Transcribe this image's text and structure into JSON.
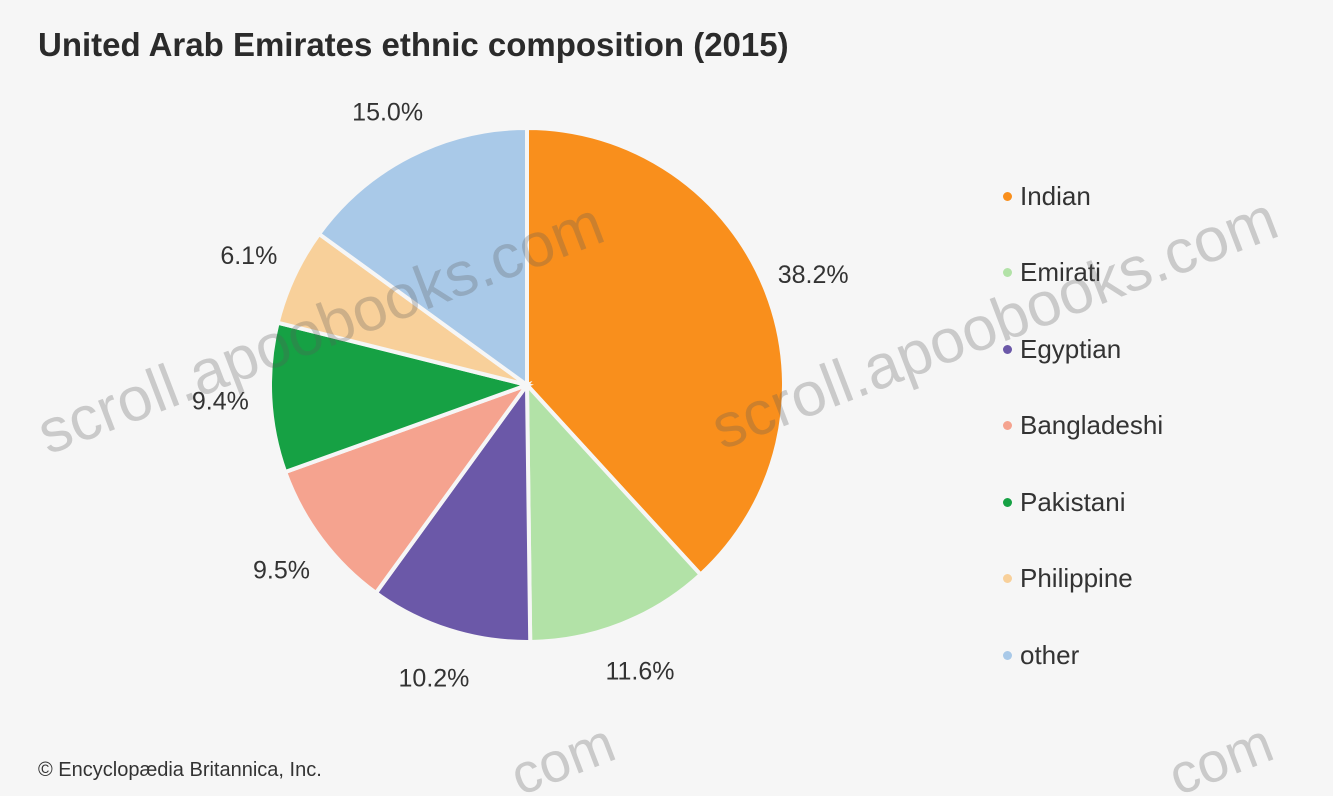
{
  "chart_data": {
    "type": "pie",
    "title": "United Arab Emirates ethnic composition (2015)",
    "slices": [
      {
        "name": "Indian",
        "value": 38.2,
        "label": "38.2%",
        "color": "#f98f1c"
      },
      {
        "name": "Emirati",
        "value": 11.6,
        "label": "11.6%",
        "color": "#b2e2a7"
      },
      {
        "name": "Egyptian",
        "value": 10.2,
        "label": "10.2%",
        "color": "#6b58a8"
      },
      {
        "name": "Bangladeshi",
        "value": 9.5,
        "label": "9.5%",
        "color": "#f5a38f"
      },
      {
        "name": "Pakistani",
        "value": 9.4,
        "label": "9.4%",
        "color": "#16a144"
      },
      {
        "name": "Philippine",
        "value": 6.1,
        "label": "6.1%",
        "color": "#f8d09a"
      },
      {
        "name": "other",
        "value": 15.0,
        "label": "15.0%",
        "color": "#a9c9e8"
      }
    ],
    "legend_position": "right"
  },
  "credit": "© Encyclopædia Britannica, Inc.",
  "watermark": "scroll.apoobooks.com",
  "watermark_fragment": "com"
}
